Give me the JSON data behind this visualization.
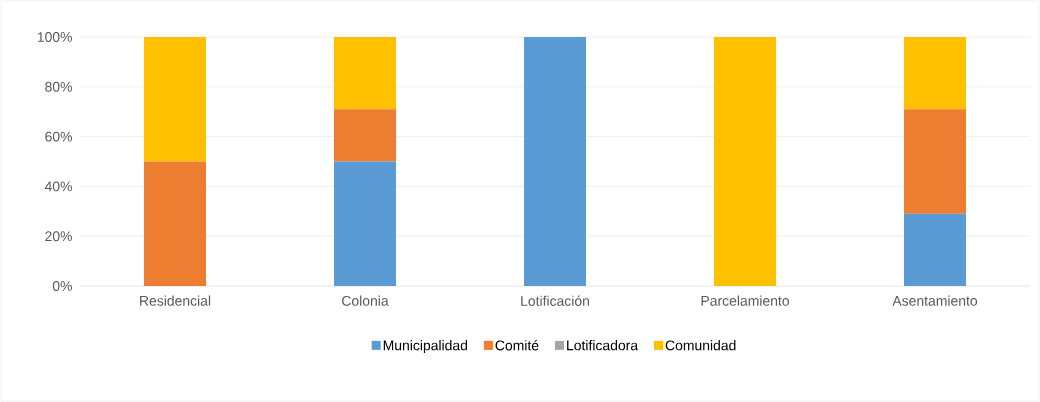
{
  "chart_data": {
    "type": "bar",
    "stacked": true,
    "categories": [
      "Residencial",
      "Colonia",
      "Lotificación",
      "Parcelamiento",
      "Asentamiento"
    ],
    "series": [
      {
        "name": "Municipalidad",
        "color": "#5b9bd5",
        "values": [
          0,
          50,
          100,
          0,
          29
        ]
      },
      {
        "name": "Comité",
        "color": "#ed7d31",
        "values": [
          50,
          21,
          0,
          0,
          42
        ]
      },
      {
        "name": "Lotificadora",
        "color": "#a5a5a5",
        "values": [
          0,
          0,
          0,
          0,
          0
        ]
      },
      {
        "name": "Comunidad",
        "color": "#ffc000",
        "values": [
          50,
          29,
          0,
          100,
          29
        ]
      }
    ],
    "ylim": [
      0,
      100
    ],
    "yticks": [
      {
        "value": 0,
        "label": "0%"
      },
      {
        "value": 20,
        "label": "20%"
      },
      {
        "value": 40,
        "label": "40%"
      },
      {
        "value": 60,
        "label": "60%"
      },
      {
        "value": 80,
        "label": "80%"
      },
      {
        "value": 100,
        "label": "100%"
      }
    ],
    "grid": "y",
    "legend": "bottom"
  }
}
